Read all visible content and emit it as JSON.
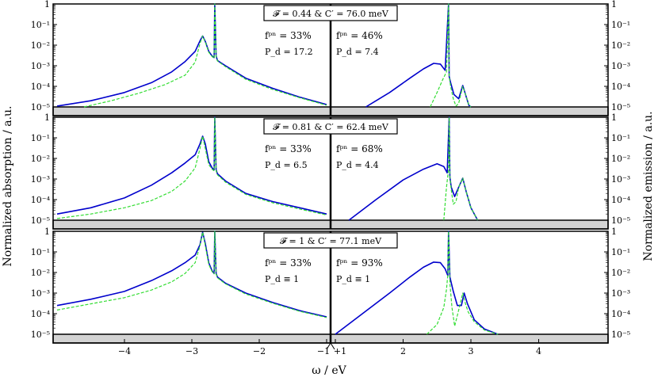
{
  "chart_data": {
    "type": "line",
    "xlabel": "ω / eV",
    "ylabel_left": "Normalized absorption / a.u.",
    "ylabel_right": "Normalized emission / a.u.",
    "x_ticks_left": [
      -4,
      -3,
      -2,
      -1
    ],
    "x_tick_labels_left": [
      "−4",
      "−3",
      "−2",
      "−1"
    ],
    "x_ticks_right": [
      1,
      2,
      3,
      4
    ],
    "x_tick_labels_right": [
      "+1",
      "2",
      "3",
      "4"
    ],
    "y_tick_labels": [
      "1",
      "10⁻¹",
      "10⁻²",
      "10⁻³",
      "10⁻⁴",
      "10⁻⁵"
    ],
    "y_scale": "log",
    "ylim": [
      1e-05,
      1
    ],
    "xlim_left": [
      -5,
      -1
    ],
    "xlim_right": [
      1,
      5
    ],
    "series_colors": {
      "solid": "#0000cc",
      "dashed": "#33dd33"
    },
    "panels": [
      {
        "title": "𝓕 = 0.44 & C′ = 76.0 meV",
        "left_annotation": [
          "fᵖⁿ = 33%",
          "P_d = 17.2"
        ],
        "right_annotation": [
          "fᵖⁿ = 46%",
          "P_d = 7.4"
        ],
        "series": [
          {
            "style": "solid",
            "side": "left",
            "x": [
              -5.0,
              -4.5,
              -4.0,
              -3.6,
              -3.3,
              -3.1,
              -2.95,
              -2.88,
              -2.84,
              -2.8,
              -2.75,
              -2.7,
              -2.67,
              -2.66,
              -2.64,
              -2.62,
              -2.5,
              -2.2,
              -1.8,
              -1.4,
              -1.0
            ],
            "y": [
              1.1e-05,
              2e-05,
              5e-05,
              0.00015,
              0.0005,
              0.0016,
              0.005,
              0.016,
              0.028,
              0.015,
              0.005,
              0.003,
              0.0025,
              1.0,
              0.003,
              0.0018,
              0.001,
              0.00025,
              8e-05,
              3e-05,
              1.3e-05
            ]
          },
          {
            "style": "dashed",
            "side": "left",
            "x": [
              -4.6,
              -4.2,
              -3.8,
              -3.4,
              -3.1,
              -2.95,
              -2.88,
              -2.84,
              -2.8,
              -2.75,
              -2.7,
              -2.67,
              -2.66,
              -2.64,
              -2.62,
              -2.5,
              -2.2,
              -1.8,
              -1.4,
              -1.0
            ],
            "y": [
              1e-05,
              2e-05,
              4.5e-05,
              0.00012,
              0.00035,
              0.0015,
              0.012,
              0.028,
              0.014,
              0.0045,
              0.0028,
              0.0023,
              1.0,
              0.0028,
              0.0017,
              0.0009,
              0.00022,
              7e-05,
              2.8e-05,
              1.2e-05
            ]
          },
          {
            "style": "solid",
            "side": "right",
            "x": [
              1.45,
              1.8,
              2.1,
              2.3,
              2.45,
              2.55,
              2.62,
              2.67,
              2.68,
              2.7,
              2.75,
              2.82,
              2.88,
              2.92,
              2.97,
              3.0
            ],
            "y": [
              1e-05,
              5e-05,
              0.00025,
              0.0007,
              0.0013,
              0.0012,
              0.0006,
              1.0,
              0.0003,
              0.00015,
              4e-05,
              2.5e-05,
              0.00011,
              4e-05,
              1.2e-05,
              1e-05
            ]
          },
          {
            "style": "dashed",
            "side": "right",
            "x": [
              2.4,
              2.5,
              2.58,
              2.64,
              2.67,
              2.68,
              2.7,
              2.74,
              2.78,
              2.82,
              2.88,
              2.92,
              2.97,
              3.0
            ],
            "y": [
              1e-05,
              5e-05,
              0.0002,
              0.0005,
              1.0,
              0.0003,
              0.0001,
              2.5e-05,
              1.1e-05,
              1.5e-05,
              0.0001,
              4e-05,
              1.2e-05,
              1e-05
            ]
          }
        ]
      },
      {
        "title": "𝓕 = 0.81 & C′ = 62.4 meV",
        "left_annotation": [
          "fᵖⁿ = 33%",
          "P_d = 6.5"
        ],
        "right_annotation": [
          "fᵖⁿ = 68%",
          "P_d = 4.4"
        ],
        "series": [
          {
            "style": "solid",
            "side": "left",
            "x": [
              -5.0,
              -4.5,
              -4.0,
              -3.6,
              -3.3,
              -3.1,
              -2.95,
              -2.88,
              -2.84,
              -2.8,
              -2.75,
              -2.7,
              -2.67,
              -2.66,
              -2.64,
              -2.62,
              -2.5,
              -2.2,
              -1.8,
              -1.4,
              -1.0
            ],
            "y": [
              2e-05,
              4e-05,
              0.00012,
              0.0005,
              0.002,
              0.006,
              0.015,
              0.05,
              0.12,
              0.05,
              0.007,
              0.0035,
              0.0028,
              1.0,
              0.0028,
              0.0018,
              0.0008,
              0.0002,
              8e-05,
              4e-05,
              2e-05
            ]
          },
          {
            "style": "dashed",
            "side": "left",
            "x": [
              -5.0,
              -4.5,
              -4.0,
              -3.6,
              -3.3,
              -3.1,
              -2.95,
              -2.88,
              -2.84,
              -2.8,
              -2.75,
              -2.7,
              -2.67,
              -2.66,
              -2.64,
              -2.62,
              -2.5,
              -2.2,
              -1.8,
              -1.4,
              -1.0
            ],
            "y": [
              1.2e-05,
              2e-05,
              4e-05,
              9e-05,
              0.00025,
              0.0008,
              0.0035,
              0.03,
              0.12,
              0.03,
              0.005,
              0.003,
              0.0025,
              1.0,
              0.0025,
              0.0016,
              0.0007,
              0.00018,
              7e-05,
              3.5e-05,
              1.8e-05
            ]
          },
          {
            "style": "solid",
            "side": "right",
            "x": [
              1.2,
              1.6,
              2.0,
              2.3,
              2.5,
              2.6,
              2.65,
              2.68,
              2.69,
              2.71,
              2.76,
              2.82,
              2.88,
              2.93,
              3.0,
              3.1
            ],
            "y": [
              1e-05,
              0.0001,
              0.0009,
              0.003,
              0.0055,
              0.004,
              0.002,
              1.0,
              0.0012,
              0.0004,
              0.00014,
              0.0004,
              0.0011,
              0.00025,
              4e-05,
              1e-05
            ]
          },
          {
            "style": "dashed",
            "side": "right",
            "x": [
              2.6,
              2.64,
              2.67,
              2.68,
              2.69,
              2.71,
              2.74,
              2.78,
              2.82,
              2.88,
              2.93,
              3.0,
              3.1
            ],
            "y": [
              1e-05,
              0.0004,
              0.003,
              1.0,
              0.0012,
              0.0003,
              6e-05,
              8e-05,
              0.0004,
              0.0011,
              0.00025,
              4e-05,
              1e-05
            ]
          }
        ]
      },
      {
        "title": "𝓕 = 1 & C′ = 77.1 meV",
        "left_annotation": [
          "fᵖⁿ = 33%",
          "P_d ≡ 1"
        ],
        "right_annotation": [
          "fᵖⁿ = 93%",
          "P_d ≡ 1"
        ],
        "series": [
          {
            "style": "solid",
            "side": "left",
            "x": [
              -5.0,
              -4.5,
              -4.0,
              -3.6,
              -3.3,
              -3.1,
              -2.95,
              -2.88,
              -2.84,
              -2.8,
              -2.75,
              -2.7,
              -2.67,
              -2.66,
              -2.64,
              -2.62,
              -2.5,
              -2.2,
              -1.8,
              -1.4,
              -1.0
            ],
            "y": [
              0.00025,
              0.0005,
              0.0012,
              0.004,
              0.012,
              0.03,
              0.07,
              0.22,
              0.9,
              0.25,
              0.03,
              0.012,
              0.009,
              1.0,
              0.009,
              0.006,
              0.003,
              0.001,
              0.00035,
              0.00014,
              7e-05
            ]
          },
          {
            "style": "dashed",
            "side": "left",
            "x": [
              -5.0,
              -4.5,
              -4.0,
              -3.6,
              -3.3,
              -3.1,
              -2.95,
              -2.88,
              -2.84,
              -2.8,
              -2.75,
              -2.7,
              -2.67,
              -2.66,
              -2.64,
              -2.62,
              -2.5,
              -2.2,
              -1.8,
              -1.4,
              -1.0
            ],
            "y": [
              0.00015,
              0.0003,
              0.0006,
              0.0014,
              0.0035,
              0.009,
              0.03,
              0.2,
              0.9,
              0.2,
              0.025,
              0.011,
              0.0085,
              1.0,
              0.0085,
              0.0055,
              0.0028,
              0.0009,
              0.00032,
              0.00013,
              6.5e-05
            ]
          },
          {
            "style": "solid",
            "side": "right",
            "x": [
              1.0,
              1.4,
              1.8,
              2.1,
              2.3,
              2.45,
              2.55,
              2.62,
              2.66,
              2.67,
              2.69,
              2.74,
              2.8,
              2.86,
              2.9,
              2.95,
              3.05,
              3.2,
              3.4
            ],
            "y": [
              1e-05,
              0.0001,
              0.001,
              0.006,
              0.018,
              0.032,
              0.03,
              0.015,
              0.007,
              1.0,
              0.006,
              0.0012,
              0.00025,
              0.00025,
              0.001,
              0.0003,
              5e-05,
              1.8e-05,
              1e-05
            ]
          },
          {
            "style": "dashed",
            "side": "right",
            "x": [
              2.35,
              2.5,
              2.6,
              2.64,
              2.66,
              2.67,
              2.69,
              2.72,
              2.76,
              2.82,
              2.88,
              2.92,
              2.96,
              3.05,
              3.2,
              3.4
            ],
            "y": [
              1e-05,
              3e-05,
              0.0002,
              0.0015,
              0.008,
              1.0,
              0.003,
              0.0002,
              2.5e-05,
              0.00015,
              0.001,
              0.0003,
              0.00012,
              4e-05,
              1.6e-05,
              1e-05
            ]
          }
        ]
      }
    ]
  }
}
